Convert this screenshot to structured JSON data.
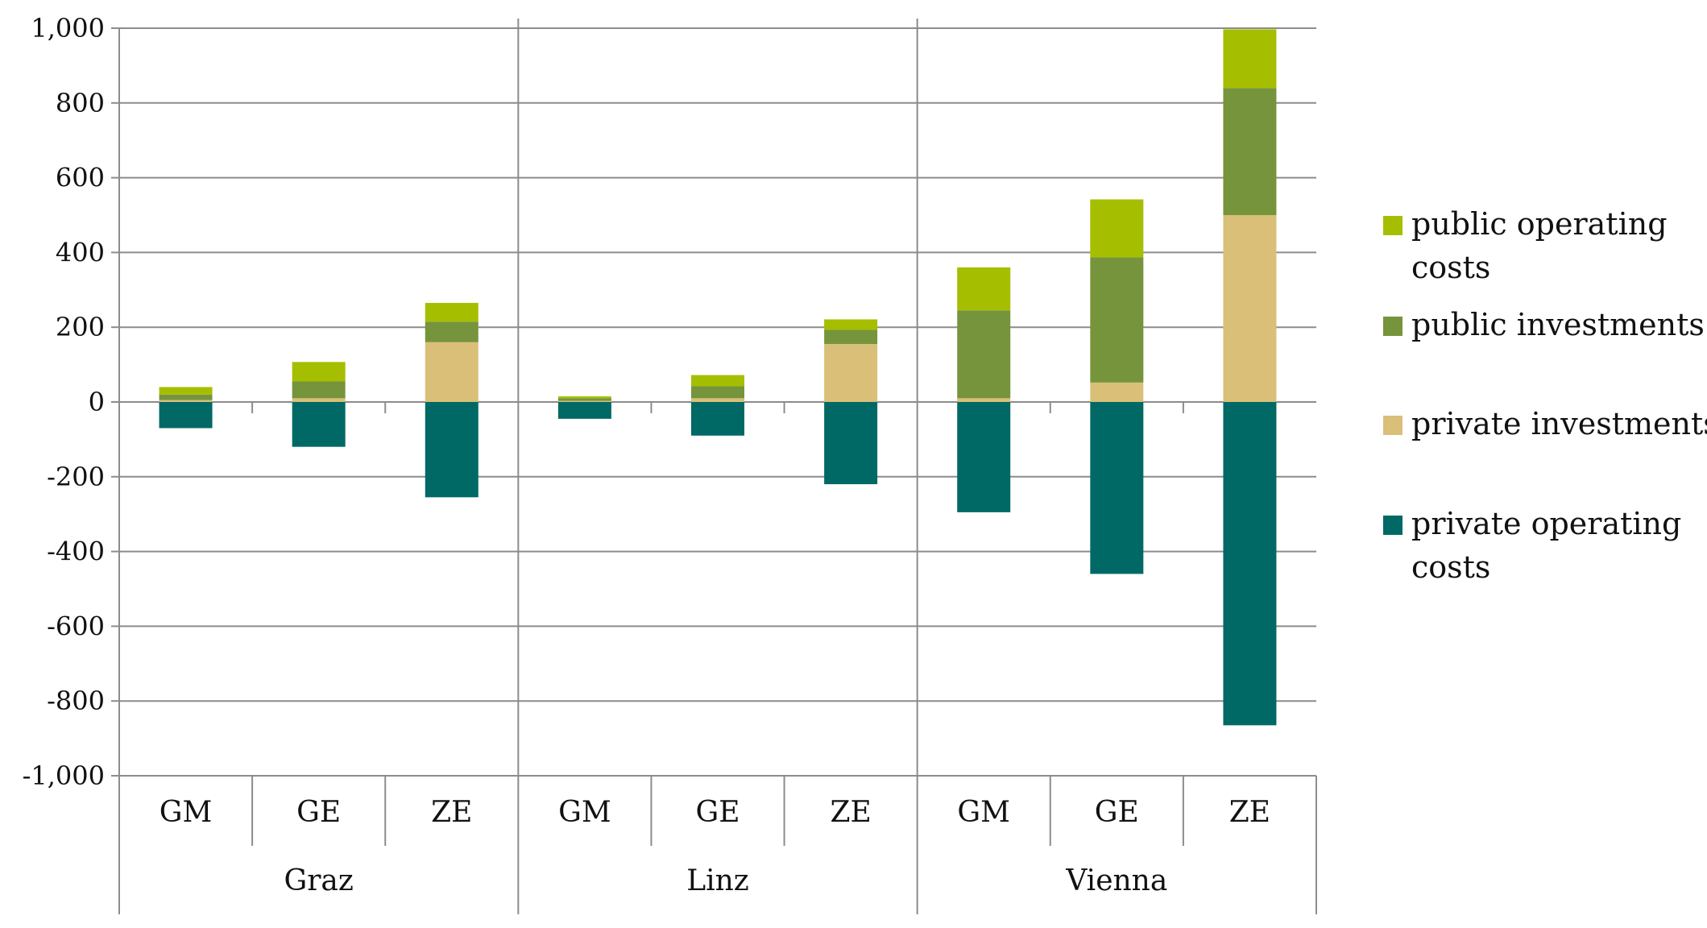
{
  "chart_data": {
    "type": "bar",
    "stacked": true,
    "title": "",
    "xlabel": "",
    "ylabel": "",
    "ylim": [
      -1000,
      1000
    ],
    "yticks": [
      1000,
      800,
      600,
      400,
      200,
      0,
      -200,
      -400,
      -600,
      -800,
      -1000
    ],
    "ytick_labels": [
      "1,000",
      "800",
      "600",
      "400",
      "200",
      "0",
      "-200",
      "-400",
      "-600",
      "-800",
      "-1,000"
    ],
    "groups": [
      {
        "name": "Graz",
        "categories": [
          "GM",
          "GE",
          "ZE"
        ]
      },
      {
        "name": "Linz",
        "categories": [
          "GM",
          "GE",
          "ZE"
        ]
      },
      {
        "name": "Vienna",
        "categories": [
          "GM",
          "GE",
          "ZE"
        ]
      }
    ],
    "categories": [
      "Graz GM",
      "Graz GE",
      "Graz ZE",
      "Linz GM",
      "Linz GE",
      "Linz ZE",
      "Vienna GM",
      "Vienna GE",
      "Vienna ZE"
    ],
    "series": [
      {
        "name": "private operating costs",
        "color": "#006966",
        "values": [
          -70,
          -120,
          -255,
          -45,
          -90,
          -220,
          -295,
          -460,
          -865
        ]
      },
      {
        "name": "private investments",
        "color": "#D9BF78",
        "values": [
          5,
          10,
          160,
          3,
          10,
          155,
          10,
          52,
          500
        ]
      },
      {
        "name": "public investments",
        "color": "#76943C",
        "values": [
          15,
          45,
          55,
          7,
          32,
          38,
          235,
          335,
          340
        ]
      },
      {
        "name": "public operating costs",
        "color": "#A6BE00",
        "values": [
          20,
          52,
          50,
          5,
          30,
          28,
          115,
          155,
          157
        ]
      }
    ],
    "legend": {
      "position": "right",
      "entries": [
        {
          "series": "public operating costs",
          "lines": [
            "public operating",
            "costs"
          ]
        },
        {
          "series": "public investments",
          "lines": [
            "public investments"
          ]
        },
        {
          "series": "private investments",
          "lines": [
            "private investments"
          ]
        },
        {
          "series": "private operating costs",
          "lines": [
            "private operating",
            "costs"
          ]
        }
      ]
    },
    "grid": true
  }
}
